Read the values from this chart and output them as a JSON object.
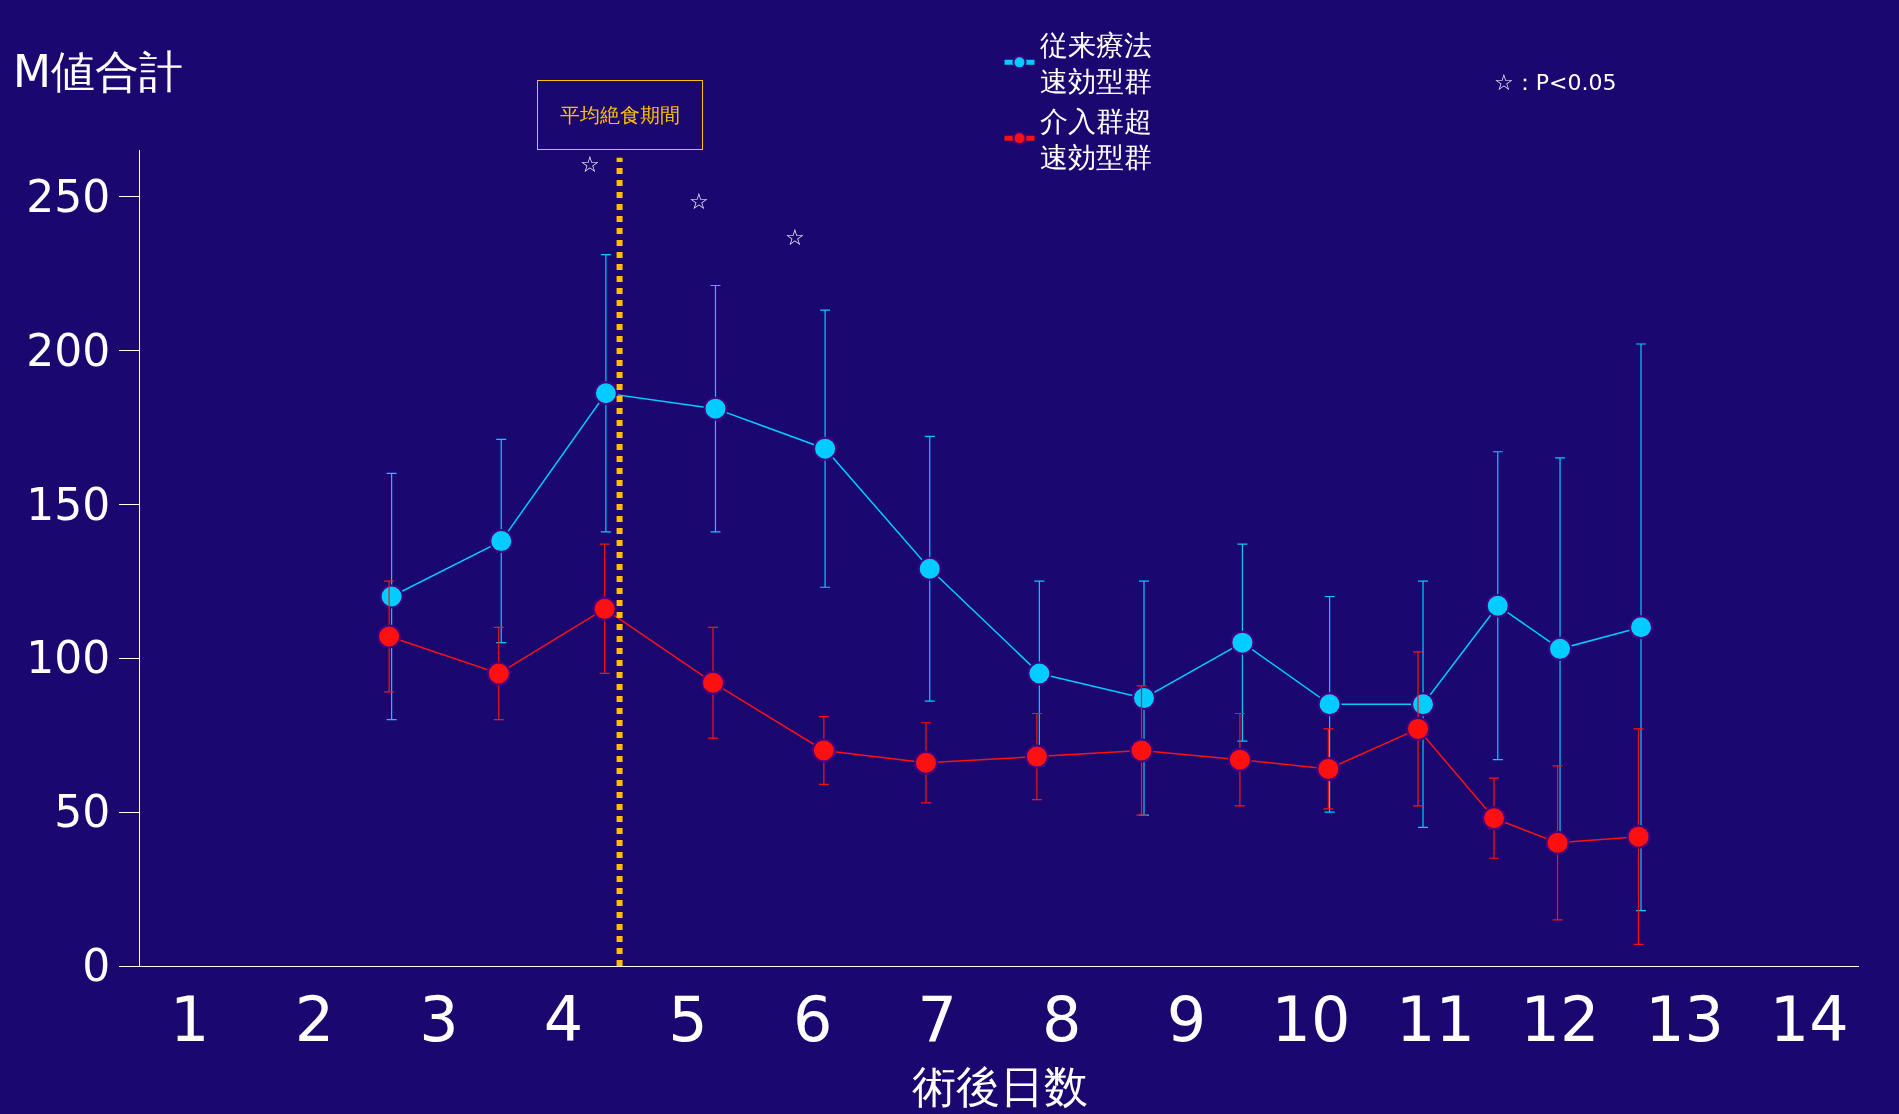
{
  "chart_data": {
    "type": "line",
    "xlabel": "術後日数",
    "ylabel": "M値合計",
    "xlim": [
      0.6,
      14.4
    ],
    "xticks": [
      1,
      2,
      3,
      4,
      5,
      6,
      7,
      8,
      9,
      10,
      11,
      12,
      13,
      14
    ],
    "ylim": [
      0,
      265
    ],
    "yticks": [
      0,
      50,
      100,
      150,
      200,
      250
    ],
    "series": [
      {
        "name": "従来療法速効型群",
        "color": "#00ccff",
        "x": [
          2.62,
          3.5,
          4.34,
          5.22,
          6.1,
          6.94,
          7.82,
          8.66,
          9.45,
          10.15,
          10.9,
          11.5,
          12.0,
          12.65
        ],
        "values": [
          120,
          138,
          186,
          181,
          168,
          129,
          95,
          87,
          105,
          85,
          85,
          117,
          103,
          110
        ],
        "errors": [
          40,
          33,
          45,
          40,
          45,
          43,
          30,
          38,
          32,
          35,
          40,
          50,
          62,
          92
        ]
      },
      {
        "name": "介入群超速効型群",
        "color": "#ff1010",
        "x": [
          2.6,
          3.48,
          4.33,
          5.2,
          6.09,
          6.91,
          7.8,
          8.64,
          9.43,
          10.14,
          10.86,
          11.47,
          11.98,
          12.63
        ],
        "values": [
          107,
          95,
          116,
          92,
          70,
          66,
          68,
          70,
          67,
          64,
          77,
          48,
          40,
          42
        ],
        "errors": [
          18,
          15,
          21,
          18,
          11,
          13,
          14,
          21,
          15,
          13,
          25,
          13,
          25,
          35
        ]
      }
    ],
    "ref_lines": [
      {
        "axis": "x",
        "value": 4.45,
        "label": "平均絶食期間",
        "color": "#ffc000",
        "line_style": "dotted"
      }
    ],
    "annotations": [
      "☆",
      "☆",
      "☆",
      "☆：P<0.05"
    ],
    "marker": "circle",
    "line_style": "solid",
    "legend": "top right",
    "grid": false
  }
}
